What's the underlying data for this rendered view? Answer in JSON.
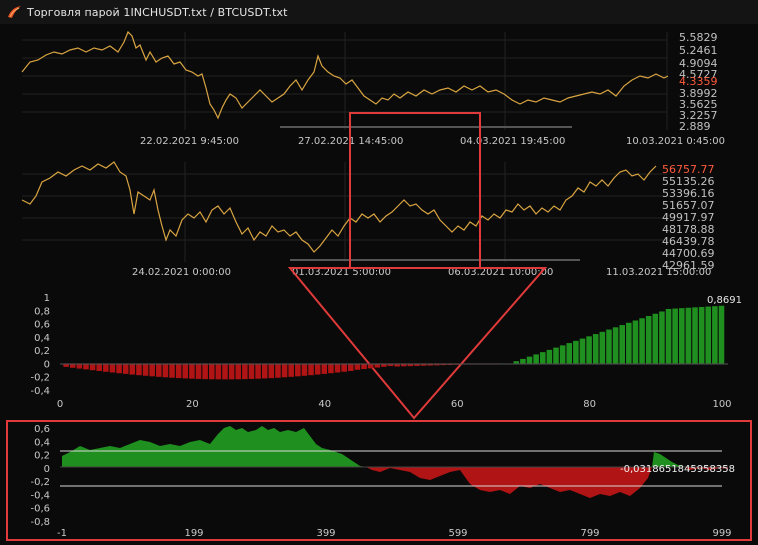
{
  "window": {
    "title": "Торговля парой  1INCHUSDT.txt / BTCUSDT.txt"
  },
  "colors": {
    "background": "#0a0a0a",
    "price_line": "#d9a441",
    "positive": "#1f8f1f",
    "negative": "#b01414",
    "highlight": "#e03a3a"
  },
  "top_chart": {
    "y_ticks": [
      "5.5829",
      "5.2461",
      "4.9094",
      "4.5727",
      "4.3359",
      "3.8992",
      "3.5625",
      "3.2257",
      "2.889"
    ],
    "current_value": "4.3359",
    "x_ticks": [
      "22.02.2021 9:45:00",
      "27.02.2021 14:45:00",
      "04.03.2021 19:45:00",
      "10.03.2021 0:45:00"
    ]
  },
  "mid_chart": {
    "y_ticks": [
      "56757.77",
      "55135.26",
      "53396.16",
      "51657.07",
      "49917.97",
      "48178.88",
      "46439.78",
      "44700.69",
      "42961.59"
    ],
    "current_value": "56757.77",
    "x_ticks": [
      "24.02.2021 0:00:00",
      "01.03.2021 5:00:00",
      "06.03.2021 10:00:00",
      "11.03.2021 15:00:00"
    ]
  },
  "chart_data": [
    {
      "type": "bar",
      "y_ticks": [
        "1",
        "0,8",
        "0,6",
        "0,4",
        "0,2",
        "0",
        "-0,2",
        "-0,4"
      ],
      "x_ticks": [
        "0",
        "20",
        "40",
        "60",
        "80",
        "100"
      ],
      "ylim": [
        -0.4,
        1
      ],
      "xlim": [
        0,
        100
      ],
      "annotation": "0,8691"
    },
    {
      "type": "area",
      "y_ticks": [
        "0,6",
        "0,4",
        "0,2",
        "0",
        "-0,2",
        "-0,4",
        "-0,6",
        "-0,8"
      ],
      "x_ticks": [
        "-1",
        "199",
        "399",
        "599",
        "799",
        "999"
      ],
      "ylim": [
        -0.8,
        0.6
      ],
      "xlim": [
        -1,
        999
      ],
      "thresholds": [
        0.25,
        -0.25
      ],
      "annotation": "-0,0318651845958358"
    }
  ]
}
